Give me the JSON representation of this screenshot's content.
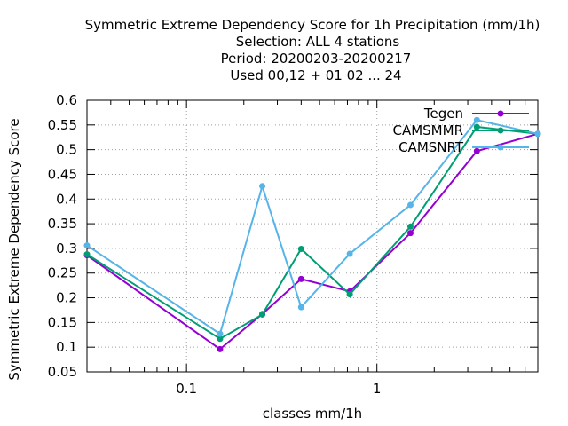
{
  "chart_data": {
    "type": "line",
    "title": [
      "Symmetric Extreme Dependency Score  for 1h Precipitation (mm/1h)",
      "Selection: ALL      4 stations",
      "Period: 20200203-20200217",
      "Used  00,12  + 01 02 ... 24"
    ],
    "xlabel": "classes mm/1h",
    "ylabel": "Symmetric Extreme Dependency Score",
    "xscale": "log",
    "xlim": [
      0.03,
      7.0
    ],
    "ylim": [
      0.05,
      0.6
    ],
    "yticks": [
      "0.05",
      "0.1",
      "0.15",
      "0.2",
      "0.25",
      "0.3",
      "0.35",
      "0.4",
      "0.45",
      "0.5",
      "0.55",
      "0.6"
    ],
    "xticks": [
      {
        "value": 0.1,
        "label": "0.1"
      },
      {
        "value": 1,
        "label": "1"
      }
    ],
    "grid": true,
    "legend": "top-right",
    "series": [
      {
        "name": "Tegen",
        "color": "#9400d3",
        "x": [
          0.03,
          0.15,
          0.25,
          0.4,
          0.72,
          1.5,
          3.35,
          7.0
        ],
        "y": [
          0.286,
          0.096,
          0.167,
          0.238,
          0.213,
          0.331,
          0.497,
          0.532
        ]
      },
      {
        "name": "CAMSMMR",
        "color": "#009e73",
        "x": [
          0.03,
          0.15,
          0.25,
          0.4,
          0.72,
          1.5,
          3.35,
          7.0
        ],
        "y": [
          0.288,
          0.117,
          0.166,
          0.299,
          0.207,
          0.344,
          0.546,
          0.532
        ]
      },
      {
        "name": "CAMSNRT",
        "color": "#56b4e9",
        "x": [
          0.03,
          0.15,
          0.25,
          0.4,
          0.72,
          1.5,
          3.35,
          7.0
        ],
        "y": [
          0.306,
          0.127,
          0.426,
          0.181,
          0.289,
          0.388,
          0.56,
          0.532
        ]
      }
    ]
  }
}
